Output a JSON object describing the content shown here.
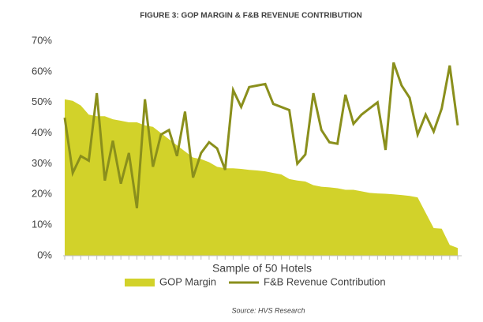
{
  "chart_data": {
    "type": "line",
    "title": "FIGURE 3: GOP MARGIN & F&B REVENUE CONTRIBUTION",
    "x_label": "Sample of 50 Hotels",
    "source": "Source: HVS Research",
    "categories": [
      null,
      null,
      null,
      null,
      null,
      null,
      null,
      null,
      null,
      null,
      null,
      null,
      null,
      null,
      null,
      null,
      null,
      null,
      null,
      null,
      null,
      null,
      null,
      null,
      null,
      null,
      null,
      null,
      null,
      null,
      null,
      null,
      null,
      null,
      null,
      null,
      null,
      null,
      null,
      null,
      null,
      null,
      null,
      null,
      null,
      null,
      null,
      null,
      null,
      null
    ],
    "series": [
      {
        "name": "GOP Margin",
        "style": "area",
        "color": "#d2d22a",
        "values": [
          51,
          50.5,
          49,
          46,
          45.5,
          45.5,
          44.5,
          44,
          43.5,
          43.5,
          42.5,
          42,
          40,
          38,
          36,
          34,
          32,
          31.5,
          30.5,
          29,
          28.5,
          28.5,
          28.3,
          28,
          27.8,
          27.5,
          27,
          26.5,
          25,
          24.5,
          24.2,
          23,
          22.5,
          22.3,
          22,
          21.5,
          21.5,
          21,
          20.5,
          20.3,
          20.2,
          20,
          19.8,
          19.5,
          19,
          14,
          9,
          8.8,
          3.5,
          2.5
        ]
      },
      {
        "name": "F&B Revenue Contribution",
        "style": "line",
        "color": "#8a8f1c",
        "values": [
          45,
          27,
          32.5,
          31,
          53,
          24.5,
          37.5,
          23.5,
          33.5,
          15.5,
          51,
          29,
          39.5,
          41,
          32.5,
          47,
          25.5,
          33.5,
          37,
          35,
          28,
          54,
          48.5,
          55,
          55.5,
          56,
          49.5,
          48.5,
          47.5,
          30,
          33,
          53,
          41,
          37,
          36.5,
          52.5,
          43,
          46,
          48,
          50,
          34.5,
          63,
          55.5,
          51.5,
          39.5,
          46,
          40.5,
          48,
          62,
          42.5
        ]
      }
    ],
    "ylim": [
      0,
      70
    ],
    "yticks": [
      {
        "value": 0,
        "label": "0%"
      },
      {
        "value": 10,
        "label": "10%"
      },
      {
        "value": 20,
        "label": "20%"
      },
      {
        "value": 30,
        "label": "30%"
      },
      {
        "value": 40,
        "label": "40%"
      },
      {
        "value": 50,
        "label": "50%"
      },
      {
        "value": 60,
        "label": "60%"
      },
      {
        "value": 70,
        "label": "70%"
      }
    ],
    "grid": false,
    "legend": "bottom"
  }
}
